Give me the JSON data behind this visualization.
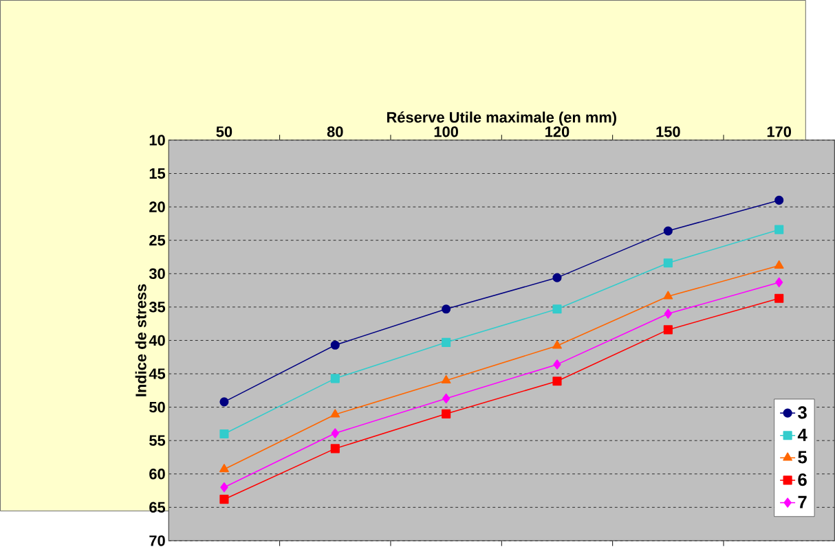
{
  "chart_data": {
    "type": "line",
    "xlabel": "Réserve Utile maximale (en mm)",
    "ylabel": "Indice de stress",
    "categories": [
      "50",
      "80",
      "100",
      "120",
      "150",
      "170"
    ],
    "ylim": [
      70,
      10
    ],
    "yticks": [
      10,
      15,
      20,
      25,
      30,
      35,
      40,
      45,
      50,
      55,
      60,
      65,
      70
    ],
    "grid": "y",
    "legend": "bottom right",
    "series": [
      {
        "name": "3",
        "color": "#000080",
        "marker": "circle",
        "values": [
          49.2,
          40.7,
          35.3,
          30.6,
          23.6,
          19.0
        ]
      },
      {
        "name": "4",
        "color": "#33cccc",
        "marker": "square",
        "values": [
          54.0,
          45.7,
          40.3,
          35.3,
          28.4,
          23.4
        ]
      },
      {
        "name": "5",
        "color": "#ff6600",
        "marker": "triangle",
        "values": [
          59.3,
          51.1,
          46.0,
          40.8,
          33.4,
          28.8
        ]
      },
      {
        "name": "6",
        "color": "#ff0000",
        "marker": "square",
        "values": [
          63.8,
          56.2,
          51.0,
          46.1,
          38.4,
          33.7
        ]
      },
      {
        "name": "7",
        "color": "#ff00ff",
        "marker": "diamond",
        "values": [
          62.0,
          53.9,
          48.7,
          43.6,
          36.0,
          31.3
        ]
      }
    ]
  }
}
